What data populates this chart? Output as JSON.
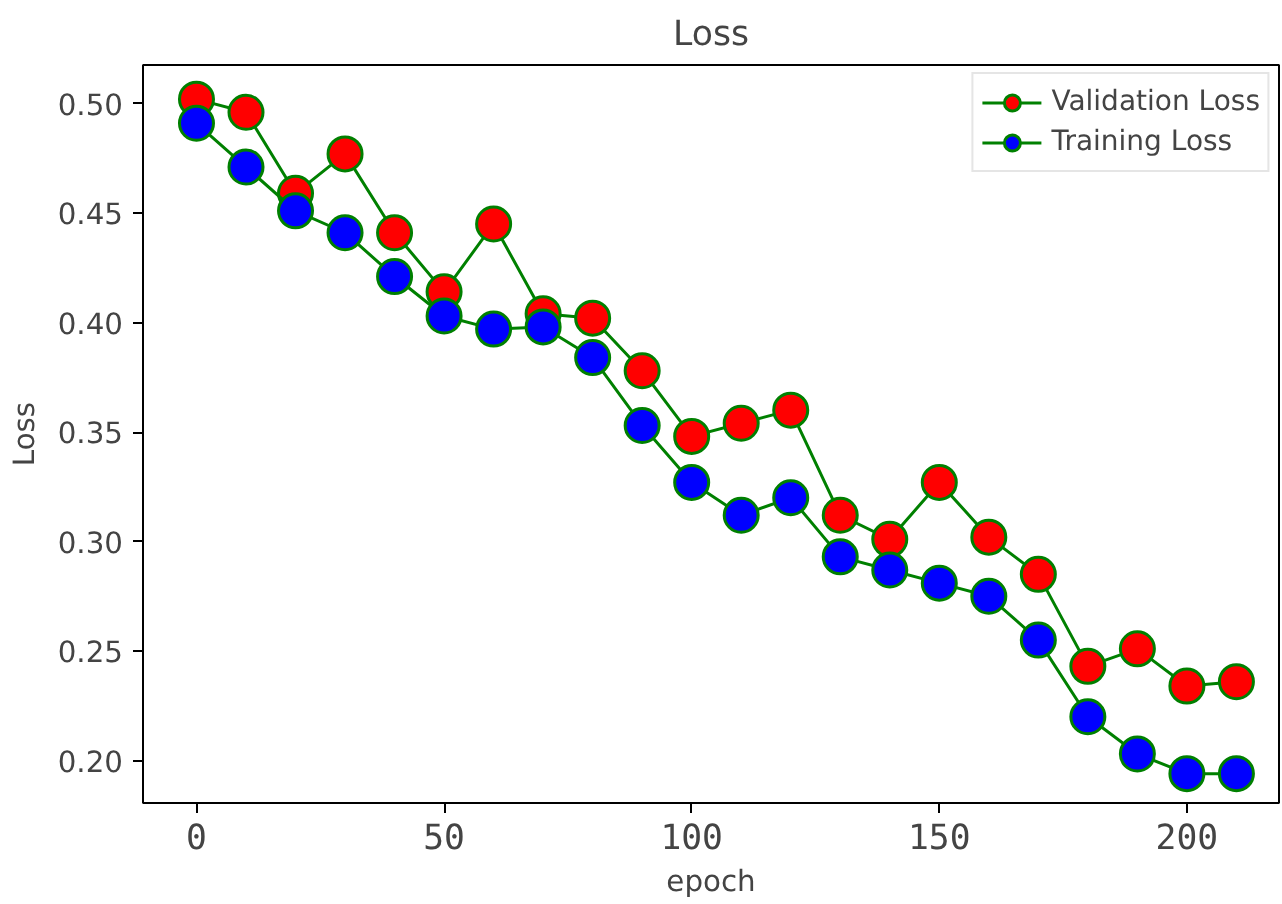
{
  "chart_data": {
    "type": "line",
    "title": "Loss",
    "xlabel": "epoch",
    "ylabel": "Loss",
    "x": [
      0,
      10,
      20,
      30,
      40,
      50,
      60,
      70,
      80,
      90,
      100,
      110,
      120,
      130,
      140,
      150,
      160,
      170,
      180,
      190,
      200,
      210
    ],
    "series": [
      {
        "name": "Validation Loss",
        "color": "#ff0000",
        "values": [
          0.502,
          0.496,
          0.459,
          0.477,
          0.441,
          0.414,
          0.445,
          0.404,
          0.402,
          0.378,
          0.348,
          0.354,
          0.36,
          0.312,
          0.301,
          0.327,
          0.302,
          0.285,
          0.243,
          0.251,
          0.234,
          0.236
        ]
      },
      {
        "name": "Training Loss",
        "color": "#0000ff",
        "values": [
          0.491,
          0.471,
          0.451,
          0.441,
          0.421,
          0.403,
          0.397,
          0.398,
          0.384,
          0.353,
          0.327,
          0.312,
          0.32,
          0.293,
          0.287,
          0.281,
          0.275,
          0.255,
          0.22,
          0.203,
          0.194,
          0.194
        ]
      }
    ],
    "xlim": [
      -10.8,
      218.6
    ],
    "ylim": [
      0.1806,
      0.5176
    ],
    "xticks": [
      0,
      50,
      100,
      150,
      200
    ],
    "yticks": [
      {
        "value": 0.2,
        "label": "0.20"
      },
      0.25,
      {
        "value": 0.3,
        "label": "0.30"
      },
      0.35,
      {
        "value": 0.4,
        "label": "0.40"
      },
      0.45,
      {
        "value": 0.5,
        "label": "0.50"
      }
    ],
    "grid": false,
    "legend": "top right",
    "marker": "circle",
    "line_style": "solid"
  }
}
